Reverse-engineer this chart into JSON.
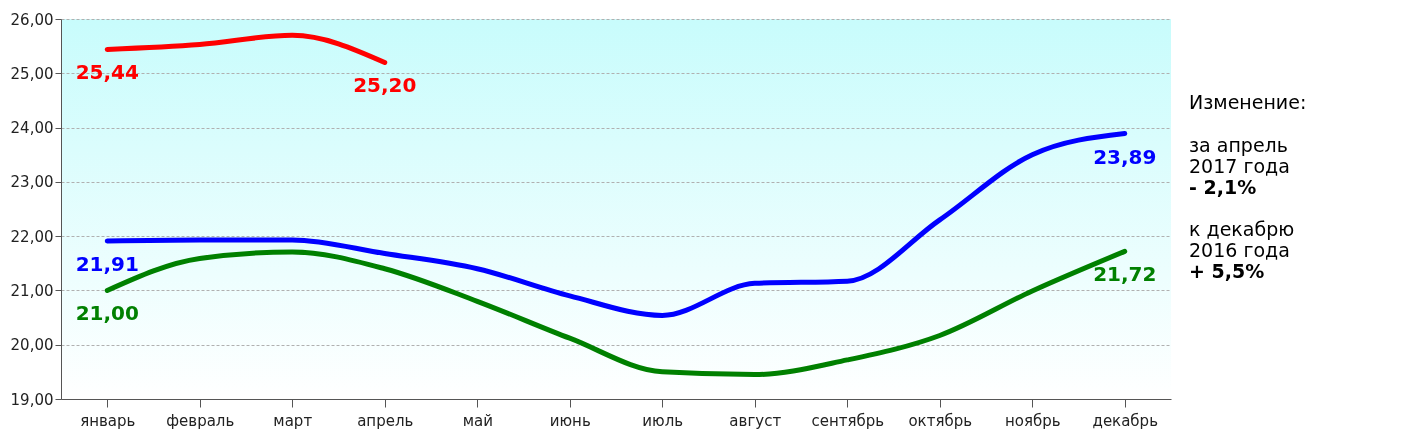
{
  "chart_data": {
    "type": "line",
    "categories": [
      "январь",
      "февраль",
      "март",
      "апрель",
      "май",
      "июнь",
      "июль",
      "август",
      "сентябрь",
      "октябрь",
      "ноябрь",
      "декабрь"
    ],
    "series": [
      {
        "color": "#ff0000",
        "values": [
          25.44,
          25.53,
          25.7,
          25.2,
          null,
          null,
          null,
          null,
          null,
          null,
          null,
          null
        ],
        "value_labels": [
          "25,44",
          null,
          null,
          "25,20",
          null,
          null,
          null,
          null,
          null,
          null,
          null,
          null
        ]
      },
      {
        "color": "#0000ff",
        "values": [
          21.91,
          21.93,
          21.93,
          21.68,
          21.4,
          20.9,
          20.54,
          21.13,
          21.17,
          22.3,
          23.5,
          23.89
        ],
        "value_labels": [
          "21,91",
          null,
          null,
          null,
          null,
          null,
          null,
          null,
          null,
          null,
          null,
          "23,89"
        ]
      },
      {
        "color": "#008000",
        "values": [
          21.0,
          21.59,
          21.71,
          21.4,
          20.8,
          20.12,
          19.5,
          19.45,
          19.72,
          20.17,
          20.99,
          21.72
        ],
        "value_labels": [
          "21,00",
          null,
          null,
          null,
          null,
          null,
          null,
          null,
          null,
          null,
          null,
          "21,72"
        ]
      }
    ],
    "ylim": [
      19,
      26
    ],
    "yticks": [
      {
        "value": 19,
        "label": "19,00"
      },
      {
        "value": 20,
        "label": "20,00"
      },
      {
        "value": 21,
        "label": "21,00"
      },
      {
        "value": 22,
        "label": "22,00"
      },
      {
        "value": 23,
        "label": "23,00"
      },
      {
        "value": 24,
        "label": "24,00"
      },
      {
        "value": 25,
        "label": "25,00"
      },
      {
        "value": 26,
        "label": "26,00"
      }
    ],
    "grid": "y",
    "legend": false,
    "line_style": "solid",
    "annotations": [
      "Изменение:",
      "за апрель\n2017 года\n- 2,1%",
      "к декабрю\n2016 года\n+ 5,5%"
    ]
  }
}
